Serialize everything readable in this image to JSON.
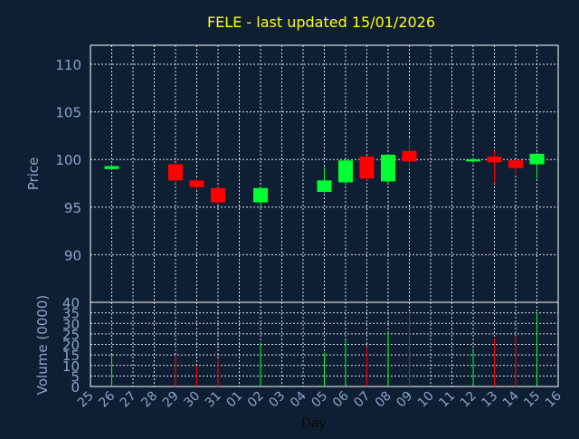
{
  "chart_data": {
    "type": "candlestick",
    "title": "FELE - last updated 15/01/2026",
    "xlabel": "Day",
    "price_panel": {
      "ylabel": "Price",
      "ylim": [
        85,
        112
      ],
      "yticks": [
        90,
        95,
        100,
        105,
        110
      ],
      "grid": true
    },
    "volume_panel": {
      "ylabel": "Volume (0000)",
      "ylim": [
        0,
        40
      ],
      "yticks": [
        0,
        5,
        10,
        15,
        20,
        25,
        30,
        35,
        40
      ],
      "grid": true
    },
    "x_ticks": [
      "25",
      "26",
      "27",
      "28",
      "29",
      "30",
      "31",
      "01",
      "02",
      "03",
      "04",
      "05",
      "06",
      "07",
      "08",
      "09",
      "10",
      "11",
      "12",
      "13",
      "14",
      "15",
      "16"
    ],
    "candles": [
      {
        "day": "26",
        "open": 99.0,
        "close": 99.3,
        "high": 99.4,
        "low": 98.9,
        "volume": 15
      },
      {
        "day": "29",
        "open": 99.5,
        "close": 97.8,
        "high": 99.6,
        "low": 97.5,
        "volume": 14
      },
      {
        "day": "30",
        "open": 97.8,
        "close": 97.1,
        "high": 97.9,
        "low": 96.9,
        "volume": 10
      },
      {
        "day": "31",
        "open": 97.0,
        "close": 95.5,
        "high": 97.1,
        "low": 95.3,
        "volume": 13
      },
      {
        "day": "02",
        "open": 95.5,
        "close": 97.0,
        "high": 97.1,
        "low": 94.8,
        "volume": 21
      },
      {
        "day": "05",
        "open": 96.6,
        "close": 97.8,
        "high": 99.2,
        "low": 96.5,
        "volume": 16
      },
      {
        "day": "06",
        "open": 97.6,
        "close": 99.9,
        "high": 100.0,
        "low": 97.3,
        "volume": 22
      },
      {
        "day": "07",
        "open": 100.3,
        "close": 98.0,
        "high": 100.4,
        "low": 97.8,
        "volume": 19
      },
      {
        "day": "08",
        "open": 97.7,
        "close": 100.5,
        "high": 100.6,
        "low": 97.5,
        "volume": 26
      },
      {
        "day": "09",
        "open": 100.9,
        "close": 99.8,
        "high": 102.3,
        "low": 99.0,
        "volume": 35
      },
      {
        "day": "12",
        "open": 99.8,
        "close": 100.0,
        "high": 100.2,
        "low": 99.6,
        "volume": 18
      },
      {
        "day": "13",
        "open": 100.3,
        "close": 99.7,
        "high": 100.9,
        "low": 97.5,
        "volume": 23
      },
      {
        "day": "14",
        "open": 99.9,
        "close": 99.1,
        "high": 100.0,
        "low": 98.5,
        "volume": 24
      },
      {
        "day": "15",
        "open": 99.5,
        "close": 100.6,
        "high": 100.7,
        "low": 98.0,
        "volume": 35
      }
    ],
    "colors": {
      "background": "#0f1f33",
      "up": "#00ff33",
      "down": "#ff0000",
      "axis_text": "#8aa4c8",
      "title": "#ffff00",
      "grid": "#ffffff",
      "frame": "#ffffff"
    }
  }
}
